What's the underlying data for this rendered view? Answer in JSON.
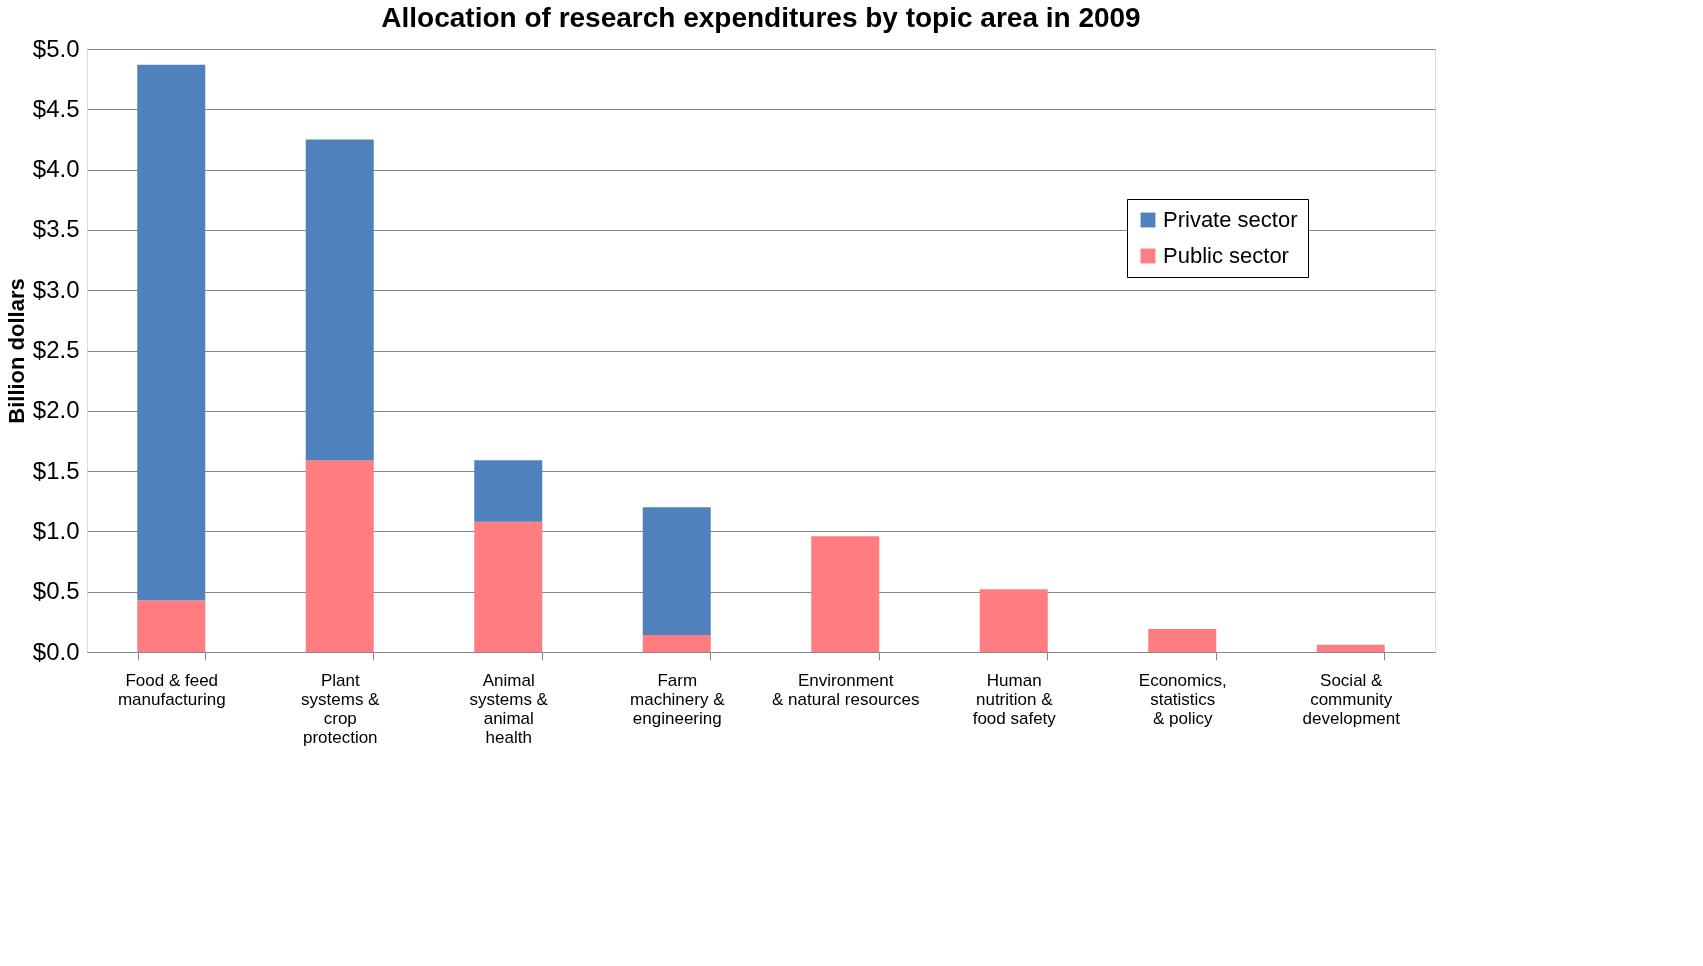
{
  "chart_data": {
    "type": "bar",
    "title": "Allocation of research expenditures by topic area in 2009",
    "ylabel": "Billion dollars",
    "categories": [
      "Food & feed\nmanufacturing",
      "Plant\nsystems &\ncrop\nprotection",
      "Animal\nsystems &\nanimal\nhealth",
      "Farm\nmachinery &\nengineering",
      "Environment\n& natural resources",
      "Human\nnutrition &\nfood safety",
      "Economics,\nstatistics\n& policy",
      "Social &\ncommunity\ndevelopment"
    ],
    "stacked": true,
    "series": [
      {
        "name": "Public sector",
        "color": "#ff7c80",
        "values": [
          0.43,
          1.59,
          1.08,
          0.14,
          0.96,
          0.52,
          0.19,
          0.06
        ]
      },
      {
        "name": "Private sector",
        "color": "#4f81bd",
        "values": [
          4.44,
          2.66,
          0.51,
          1.06,
          0,
          0,
          0,
          0
        ]
      }
    ],
    "ylim": [
      0,
      5
    ],
    "yticks": [
      {
        "value": 0,
        "label": "$0.0"
      },
      {
        "value": 0.5,
        "label": "$0.5"
      },
      {
        "value": 1,
        "label": "$1.0"
      },
      {
        "value": 1.5,
        "label": "$1.5"
      },
      {
        "value": 2,
        "label": "$2.0"
      },
      {
        "value": 2.5,
        "label": "$2.5"
      },
      {
        "value": 3,
        "label": "$3.0"
      },
      {
        "value": 3.5,
        "label": "$3.5"
      },
      {
        "value": 4,
        "label": "$4.0"
      },
      {
        "value": 4.5,
        "label": "$4.5"
      },
      {
        "value": 5,
        "label": "$5.0"
      }
    ],
    "grid": "y",
    "legend": "top right"
  }
}
